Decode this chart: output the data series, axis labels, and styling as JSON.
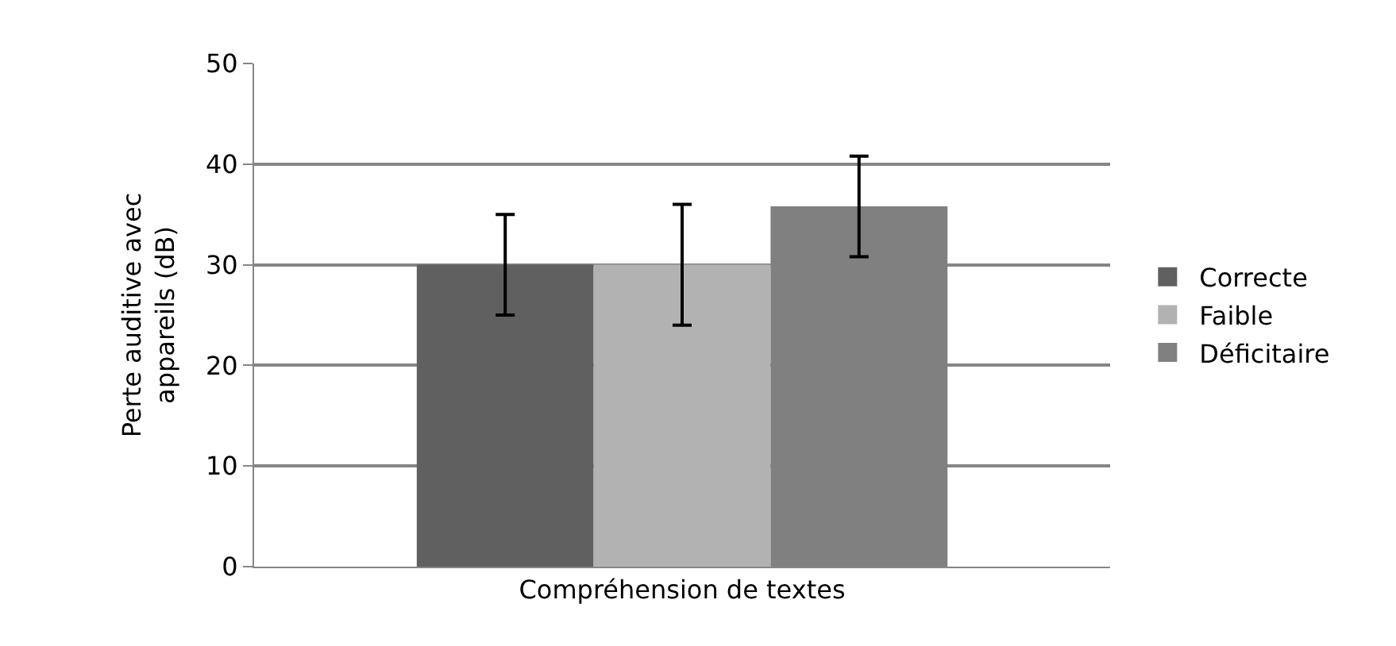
{
  "chart_data": {
    "type": "bar",
    "xlabel": null,
    "ylabel": "Perte auditive avec\nappareils (dB)",
    "categories": [
      "Compréhension de textes"
    ],
    "series": [
      {
        "name": "Correcte",
        "color": "#606060",
        "values": [
          30
        ],
        "errors": [
          5
        ]
      },
      {
        "name": "Faible",
        "color": "#b2b2b2",
        "values": [
          30
        ],
        "errors": [
          6
        ]
      },
      {
        "name": "Déficitaire",
        "color": "#808080",
        "values": [
          35.8
        ],
        "errors": [
          5
        ]
      }
    ],
    "ylim": [
      0,
      50
    ],
    "yticks": [
      0,
      10,
      20,
      30,
      40,
      50
    ],
    "grid": "y",
    "legend": "right"
  }
}
